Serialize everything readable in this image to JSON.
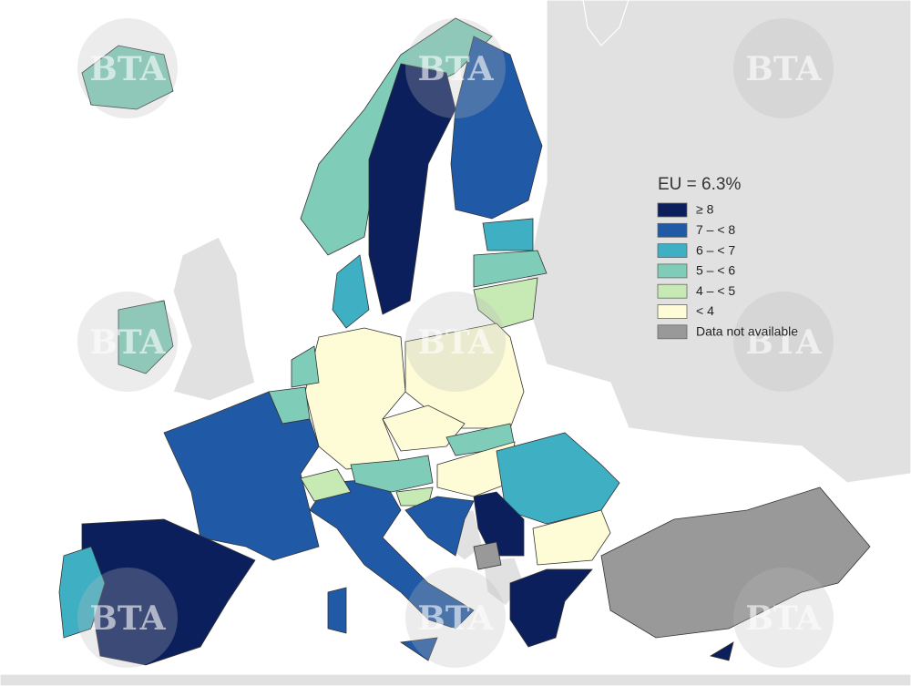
{
  "legend": {
    "title": "EU = 6.3%",
    "items": [
      {
        "label": "≥ 8",
        "color": "#0b1f5c"
      },
      {
        "label": "7 – < 8",
        "color": "#2059a6"
      },
      {
        "label": "6 – < 7",
        "color": "#3fb0c4"
      },
      {
        "label": "5 – < 6",
        "color": "#7fcdb8"
      },
      {
        "label": "4 – < 5",
        "color": "#c7e9b4"
      },
      {
        "label": "< 4",
        "color": "#fdfcd6"
      },
      {
        "label": "Data not available",
        "color": "#999999"
      }
    ]
  },
  "watermark": "BTA"
}
